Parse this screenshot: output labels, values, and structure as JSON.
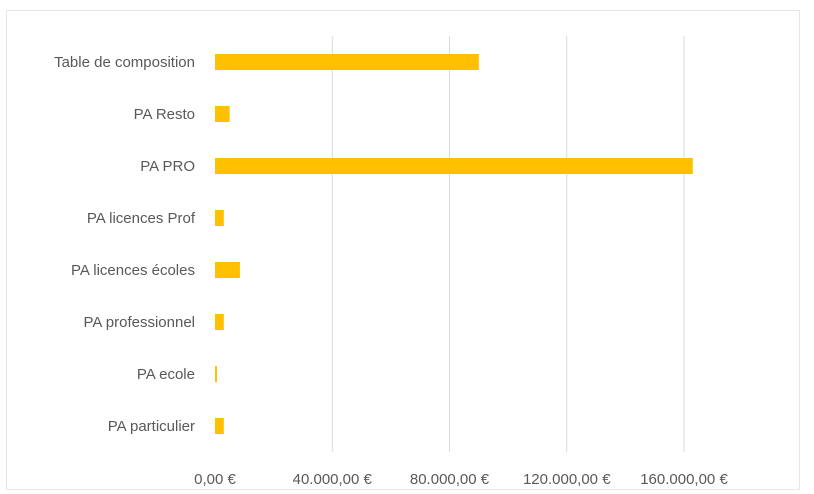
{
  "chart_data": {
    "type": "bar",
    "orientation": "horizontal",
    "title": "",
    "xlabel": "",
    "ylabel": "",
    "categories": [
      "Table de composition",
      "PA Resto",
      "PA PRO",
      "PA licences Prof",
      "PA licences écoles",
      "PA professionnel",
      "PA ecole",
      "PA particulier"
    ],
    "values": [
      90000,
      5000,
      163000,
      3000,
      8500,
      3000,
      500,
      3000
    ],
    "xlim": [
      0,
      160000
    ],
    "x_ticks": [
      0,
      40000,
      80000,
      120000,
      160000
    ],
    "x_tick_labels": [
      "0,00 €",
      "40.000,00 €",
      "80.000,00 €",
      "120.000,00 €",
      "160.000,00 €"
    ],
    "grid": true,
    "legend": "none",
    "bar_color": "#FFC000"
  }
}
